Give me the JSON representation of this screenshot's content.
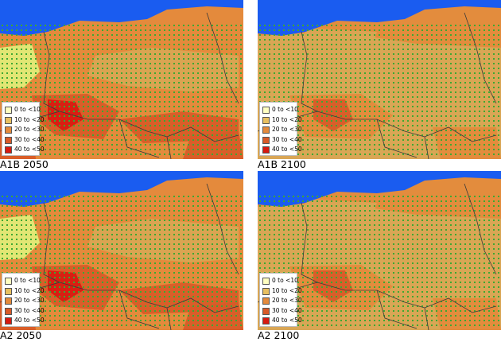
{
  "panels": [
    {
      "caption": "A1B 2050",
      "scenario": "A1B",
      "year": 2050,
      "dominant_class": 2
    },
    {
      "caption": "A1B 2100",
      "scenario": "A1B",
      "year": 2100,
      "dominant_class": 1
    },
    {
      "caption": "A2 2050",
      "scenario": "A2",
      "year": 2050,
      "dominant_class": 2
    },
    {
      "caption": "A2 2100",
      "scenario": "A2",
      "year": 2100,
      "dominant_class": 1
    }
  ],
  "legend": {
    "items": [
      {
        "label": "0 to <10",
        "color": "#ffffc0"
      },
      {
        "label": "10 to <20",
        "color": "#e8c060"
      },
      {
        "label": "20 to <30",
        "color": "#e48a3c"
      },
      {
        "label": "30 to <40",
        "color": "#d85a28"
      },
      {
        "label": "40 to <50",
        "color": "#d81a10"
      }
    ]
  },
  "map_colors": {
    "sea": "#1a5cf0",
    "grid_dots": "#3ea832",
    "borders": "#3a3a3a",
    "low_class_fill": "#e2ee7a"
  }
}
